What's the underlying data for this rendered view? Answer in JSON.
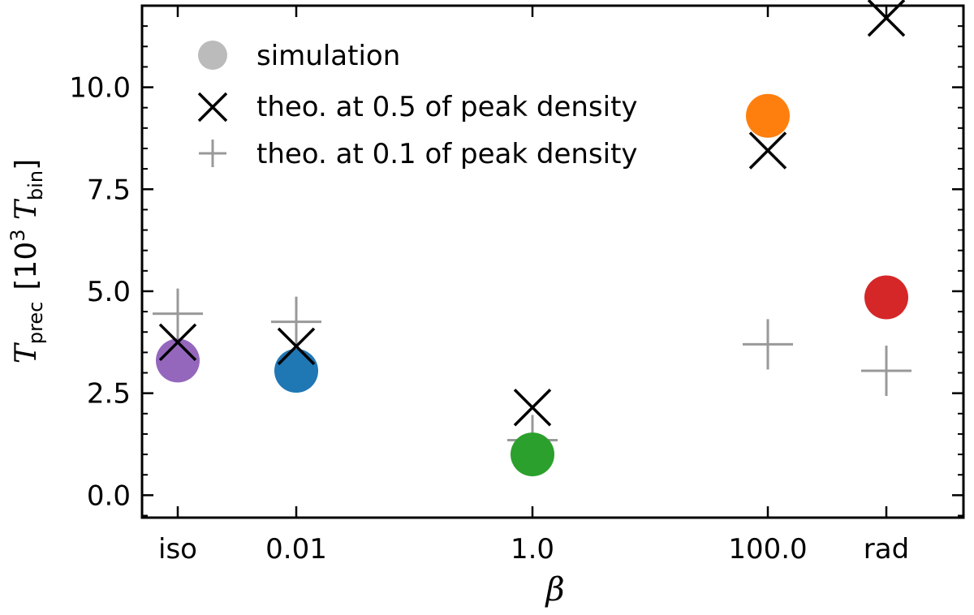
{
  "chart_data": {
    "type": "scatter",
    "categories": [
      "iso",
      "0.01",
      "1.0",
      "100.0",
      "rad"
    ],
    "xlabel": "β",
    "ylabel": {
      "main": "T",
      "main_sub": "prec",
      "unit_open": "[10",
      "unit_sup": "3",
      "unit_t": " T",
      "unit_sub": "bin",
      "unit_close": "]"
    },
    "ylim": [
      -0.55,
      12.0
    ],
    "yticks": [
      0.0,
      2.5,
      5.0,
      7.5,
      10.0
    ],
    "ytick_labels": [
      "0.0",
      "2.5",
      "5.0",
      "7.5",
      "10.0"
    ],
    "grid": false,
    "legend_position": "top-left",
    "series": [
      {
        "name": "simulation",
        "marker": "circle",
        "legend_color": "#bbbbbb",
        "values": [
          3.3,
          3.05,
          1.0,
          9.3,
          4.85
        ],
        "colors": [
          "#9467bd",
          "#1f77b4",
          "#2ca02c",
          "#ff7f0e",
          "#d62728"
        ]
      },
      {
        "name": "theo. at 0.5 of peak density",
        "marker": "x",
        "color": "#000000",
        "values": [
          3.75,
          3.65,
          2.15,
          8.45,
          11.7
        ]
      },
      {
        "name": "theo. at 0.1 of peak density",
        "marker": "plus",
        "color": "#999999",
        "values": [
          4.45,
          4.25,
          1.35,
          3.7,
          3.05
        ]
      }
    ]
  }
}
